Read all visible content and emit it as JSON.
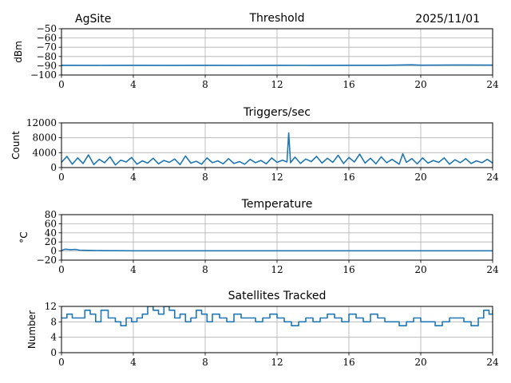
{
  "header": {
    "site": "AgSite",
    "date": "2025/11/01"
  },
  "colors": {
    "line": "#1f77b4",
    "grid": "#b0b0b0",
    "axis": "#000000"
  },
  "chart_data": [
    {
      "type": "line",
      "title": "Threshold",
      "ylabel": "dBm",
      "xlabel": "",
      "xlim": [
        0,
        24
      ],
      "ylim": [
        -100,
        -50
      ],
      "x_ticks": [
        "0",
        "4",
        "8",
        "12",
        "16",
        "20",
        "24"
      ],
      "y_ticks": [
        "−50",
        "−60",
        "−70",
        "−80",
        "−90",
        "−100"
      ],
      "grid": true,
      "series": [
        {
          "x": [
            0,
            2,
            4,
            6,
            8,
            10,
            12,
            14,
            16,
            18,
            19.5,
            20,
            22,
            24
          ],
          "values": [
            -89.5,
            -89.6,
            -89.5,
            -89.6,
            -89.5,
            -89.6,
            -89.5,
            -89.6,
            -89.5,
            -89.5,
            -89.0,
            -89.4,
            -89.1,
            -89.3
          ]
        }
      ]
    },
    {
      "type": "line",
      "title": "Triggers/sec",
      "ylabel": "Count",
      "xlabel": "",
      "xlim": [
        0,
        24
      ],
      "ylim": [
        0,
        12000
      ],
      "x_ticks": [
        "0",
        "4",
        "8",
        "12",
        "16",
        "20",
        "24"
      ],
      "y_ticks": [
        "12000",
        "8000",
        "4000",
        "0"
      ],
      "grid": true,
      "series": [
        {
          "x": [
            0,
            0.3,
            0.6,
            0.9,
            1.2,
            1.5,
            1.8,
            2.1,
            2.4,
            2.7,
            3.0,
            3.3,
            3.6,
            3.9,
            4.2,
            4.5,
            4.8,
            5.1,
            5.4,
            5.7,
            6.0,
            6.3,
            6.6,
            6.9,
            7.2,
            7.5,
            7.8,
            8.1,
            8.4,
            8.7,
            9.0,
            9.3,
            9.6,
            9.9,
            10.2,
            10.5,
            10.8,
            11.1,
            11.4,
            11.7,
            12.0,
            12.3,
            12.55,
            12.65,
            12.75,
            13.0,
            13.3,
            13.6,
            13.9,
            14.2,
            14.5,
            14.8,
            15.1,
            15.4,
            15.7,
            16.0,
            16.3,
            16.6,
            16.9,
            17.2,
            17.5,
            17.8,
            18.1,
            18.4,
            18.8,
            19.0,
            19.2,
            19.5,
            19.8,
            20.1,
            20.4,
            20.7,
            21.0,
            21.3,
            21.6,
            21.9,
            22.2,
            22.5,
            22.8,
            23.1,
            23.4,
            23.7,
            24.0
          ],
          "values": [
            1400,
            3000,
            900,
            2600,
            1100,
            3400,
            800,
            2200,
            1300,
            2900,
            700,
            2000,
            1500,
            2700,
            900,
            1800,
            1200,
            2500,
            1000,
            1900,
            1400,
            2300,
            800,
            3100,
            1200,
            1700,
            900,
            2600,
            1300,
            1800,
            1000,
            2400,
            1100,
            1600,
            900,
            2200,
            1300,
            1900,
            1000,
            2600,
            1400,
            2000,
            1500,
            9300,
            1300,
            2800,
            1100,
            2300,
            1600,
            3000,
            1200,
            2500,
            1400,
            3300,
            1100,
            2700,
            1500,
            3600,
            1200,
            2500,
            1000,
            2900,
            1300,
            2200,
            900,
            3700,
            1400,
            2400,
            1000,
            2600,
            1200,
            1900,
            1400,
            2600,
            900,
            2100,
            1300,
            2400,
            1100,
            1800,
            1300,
            2200,
            1200
          ]
        }
      ]
    },
    {
      "type": "line",
      "title": "Temperature",
      "ylabel": "°C",
      "xlabel": "",
      "xlim": [
        0,
        24
      ],
      "ylim": [
        -20,
        80
      ],
      "x_ticks": [
        "0",
        "4",
        "8",
        "12",
        "16",
        "20",
        "24"
      ],
      "y_ticks": [
        "80",
        "60",
        "40",
        "20",
        "0",
        "−20"
      ],
      "grid": true,
      "series": [
        {
          "x": [
            0,
            0.2,
            0.5,
            0.8,
            1.0,
            1.3,
            2,
            4,
            8,
            12,
            16,
            20,
            24
          ],
          "values": [
            1,
            4,
            3,
            3.5,
            2,
            1.5,
            1,
            0.5,
            0.5,
            0.5,
            0.5,
            0.5,
            0.5
          ]
        }
      ]
    },
    {
      "type": "line",
      "title": "Satellites Tracked",
      "ylabel": "Number",
      "xlabel": "",
      "xlim": [
        0,
        24
      ],
      "ylim": [
        0,
        12
      ],
      "x_ticks": [
        "0",
        "4",
        "8",
        "12",
        "16",
        "20",
        "24"
      ],
      "y_ticks": [
        "12",
        "8",
        "4",
        "0"
      ],
      "grid": true,
      "series": [
        {
          "x": [
            0,
            0.3,
            0.6,
            1.0,
            1.3,
            1.6,
            1.9,
            2.2,
            2.6,
            3.0,
            3.3,
            3.6,
            3.9,
            4.2,
            4.5,
            4.8,
            5.1,
            5.4,
            5.7,
            6.0,
            6.3,
            6.6,
            6.9,
            7.2,
            7.5,
            7.8,
            8.1,
            8.4,
            8.8,
            9.2,
            9.6,
            10.0,
            10.4,
            10.8,
            11.2,
            11.6,
            12.0,
            12.4,
            12.8,
            13.2,
            13.6,
            14.0,
            14.4,
            14.8,
            15.2,
            15.6,
            16.0,
            16.4,
            16.8,
            17.2,
            17.6,
            18.0,
            18.4,
            18.8,
            19.2,
            19.6,
            20.0,
            20.4,
            20.8,
            21.2,
            21.6,
            22.0,
            22.4,
            22.8,
            23.2,
            23.5,
            23.8,
            24.0
          ],
          "values": [
            9,
            10,
            9,
            9,
            11,
            10,
            8,
            11,
            9,
            8,
            7,
            9,
            8,
            9,
            10,
            12,
            11,
            10,
            12,
            11,
            9,
            10,
            8,
            9,
            11,
            10,
            8,
            10,
            9,
            8,
            10,
            9,
            9,
            8,
            9,
            10,
            9,
            8,
            7,
            8,
            9,
            8,
            9,
            10,
            9,
            8,
            10,
            9,
            8,
            10,
            9,
            8,
            8,
            7,
            8,
            9,
            8,
            8,
            7,
            8,
            9,
            9,
            8,
            7,
            9,
            11,
            10,
            11
          ]
        }
      ]
    }
  ]
}
